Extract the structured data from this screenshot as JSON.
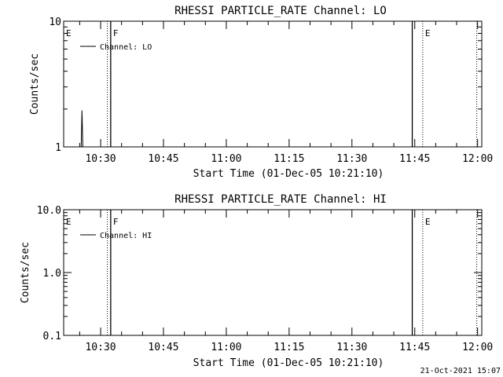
{
  "footer_timestamp": "21-Oct-2021 15:07",
  "chart_data": [
    {
      "type": "line",
      "title": "RHESSI PARTICLE_RATE Channel: LO",
      "xlabel": "Start Time (01-Dec-05 10:21:10)",
      "ylabel": "Counts/sec",
      "y_scale": "log",
      "ylim": [
        1,
        10
      ],
      "y_ticks": [
        {
          "value": 1,
          "label": "1"
        },
        {
          "value": 10,
          "label": "10"
        }
      ],
      "x_range_min": [
        21.17,
        121.0
      ],
      "x_ticks": [
        {
          "t": 30,
          "label": "10:30"
        },
        {
          "t": 45,
          "label": "10:45"
        },
        {
          "t": 60,
          "label": "11:00"
        },
        {
          "t": 75,
          "label": "11:15"
        },
        {
          "t": 90,
          "label": "11:30"
        },
        {
          "t": 105,
          "label": "11:45"
        },
        {
          "t": 120,
          "label": "12:00"
        }
      ],
      "series": [
        {
          "name": "Channel: LO",
          "points": [
            [
              25.35,
              1.0
            ],
            [
              25.55,
              1.95
            ],
            [
              25.75,
              1.0
            ]
          ]
        }
      ],
      "markers": [
        {
          "t": 21.17,
          "style": "dotted",
          "label": "E"
        },
        {
          "t": 31.6,
          "style": "dotted",
          "label": ""
        },
        {
          "t": 32.4,
          "style": "solid",
          "label": "F"
        },
        {
          "t": 104.4,
          "style": "solid",
          "label": ""
        },
        {
          "t": 106.9,
          "style": "dotted",
          "label": "E"
        },
        {
          "t": 119.8,
          "style": "dotted",
          "label": ""
        }
      ],
      "legend": "top-left"
    },
    {
      "type": "line",
      "title": "RHESSI PARTICLE_RATE Channel: HI",
      "xlabel": "Start Time (01-Dec-05 10:21:10)",
      "ylabel": "Counts/sec",
      "y_scale": "log",
      "ylim": [
        0.1,
        10
      ],
      "y_ticks": [
        {
          "value": 0.1,
          "label": "0.1"
        },
        {
          "value": 1,
          "label": "1.0"
        },
        {
          "value": 10,
          "label": "10.0"
        }
      ],
      "x_range_min": [
        21.17,
        121.0
      ],
      "x_ticks": [
        {
          "t": 30,
          "label": "10:30"
        },
        {
          "t": 45,
          "label": "10:45"
        },
        {
          "t": 60,
          "label": "11:00"
        },
        {
          "t": 75,
          "label": "11:15"
        },
        {
          "t": 90,
          "label": "11:30"
        },
        {
          "t": 105,
          "label": "11:45"
        },
        {
          "t": 120,
          "label": "12:00"
        }
      ],
      "series": [
        {
          "name": "Channel: HI",
          "points": []
        }
      ],
      "markers": [
        {
          "t": 21.17,
          "style": "dotted",
          "label": "E"
        },
        {
          "t": 31.6,
          "style": "dotted",
          "label": ""
        },
        {
          "t": 32.4,
          "style": "solid",
          "label": "F"
        },
        {
          "t": 104.4,
          "style": "solid",
          "label": ""
        },
        {
          "t": 106.9,
          "style": "dotted",
          "label": "E"
        },
        {
          "t": 119.8,
          "style": "dotted",
          "label": ""
        }
      ],
      "legend": "top-left"
    }
  ]
}
